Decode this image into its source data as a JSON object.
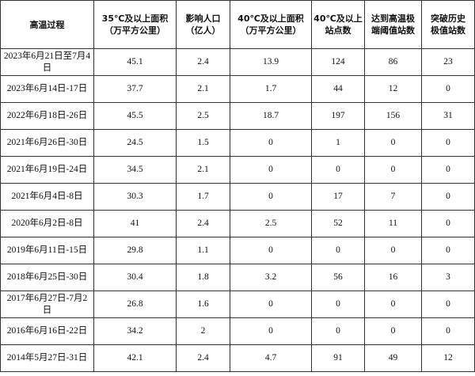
{
  "table": {
    "header": [
      [
        "高温过程"
      ],
      [
        "35℃及以上面积",
        "（万平方公里）"
      ],
      [
        "影响人口",
        "（亿人）"
      ],
      [
        "40℃及以上面积",
        "（万平方公里）"
      ],
      [
        "40℃及以上",
        "站点数"
      ],
      [
        "达到高温极",
        "端阈值站数"
      ],
      [
        "突破历史",
        "极值站数"
      ]
    ],
    "rows": [
      [
        "2023年6月21日至7月4日",
        45.1,
        2.4,
        13.9,
        124,
        86,
        23
      ],
      [
        "2023年6月14日-17日",
        37.7,
        2.1,
        1.7,
        44,
        12,
        0
      ],
      [
        "2022年6月18日-26日",
        45.5,
        2.5,
        18.7,
        197,
        156,
        31
      ],
      [
        "2021年6月26日-30日",
        24.5,
        1.5,
        0,
        1,
        0,
        0
      ],
      [
        "2021年6月19日-24日",
        34.5,
        2.1,
        0,
        0,
        0,
        0
      ],
      [
        "2021年6月4日-8日",
        30.3,
        1.7,
        0,
        17,
        7,
        0
      ],
      [
        "2020年6月2日-8日",
        41,
        2.4,
        2.5,
        52,
        11,
        0
      ],
      [
        "2019年6月11日-15日",
        29.8,
        1.1,
        0,
        0,
        0,
        0
      ],
      [
        "2018年6月25日-30日",
        30.4,
        1.8,
        3.2,
        56,
        16,
        3
      ],
      [
        "2017年6月27日-7月2日",
        26.8,
        1.6,
        0,
        0,
        0,
        0
      ],
      [
        "2016年6月16日-22日",
        34.2,
        2,
        0,
        0,
        0,
        0
      ],
      [
        "2014年5月27日-31日",
        42.1,
        2.4,
        4.7,
        91,
        49,
        12
      ]
    ]
  }
}
